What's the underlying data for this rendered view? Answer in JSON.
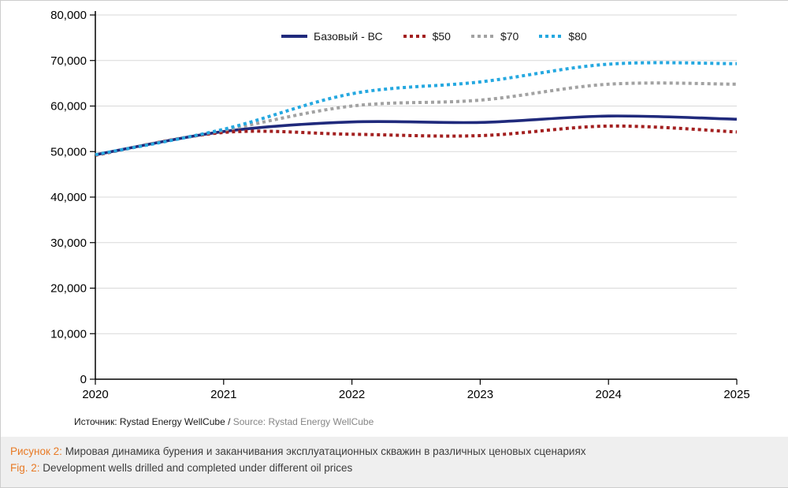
{
  "chart_data": {
    "type": "line",
    "x": [
      2020,
      2021,
      2022,
      2023,
      2024,
      2025
    ],
    "x_tick_labels": [
      "2020",
      "2021",
      "2022",
      "2023",
      "2024",
      "2025"
    ],
    "y_tick_labels": [
      "0",
      "10,000",
      "20,000",
      "30,000",
      "40,000",
      "50,000",
      "60,000",
      "70,000",
      "80,000"
    ],
    "ylim": [
      0,
      80000
    ],
    "ytick_step": 10000,
    "grid": true,
    "legend_position": "top-center",
    "series": [
      {
        "name": "Базовый - ВС",
        "style": "solid",
        "color": "#202a7c",
        "values": [
          49300,
          54400,
          56500,
          56400,
          57800,
          57100
        ]
      },
      {
        "name": "$50",
        "style": "dotted",
        "color": "#a32020",
        "values": [
          49200,
          54200,
          53800,
          53500,
          55600,
          54300
        ]
      },
      {
        "name": "$70",
        "style": "dotted",
        "color": "#a2a2a2",
        "values": [
          49300,
          54700,
          60000,
          61300,
          64800,
          64800
        ]
      },
      {
        "name": "$80",
        "style": "dotted",
        "color": "#25a8e0",
        "values": [
          49300,
          54900,
          62700,
          65300,
          69200,
          69300
        ]
      }
    ]
  },
  "source_line": {
    "primary": "Источник: Rystad Energy WellCube / ",
    "secondary": "Source: Rystad Energy WellCube"
  },
  "caption": {
    "accent_color": "#e87a25",
    "line1_label": "Рисунок 2:",
    "line1_text": " Мировая динамика бурения и заканчивания эксплуатационных скважин в различных ценовых сценариях",
    "line2_label": "Fig. 2:",
    "line2_text": " Development wells drilled and completed under different oil prices"
  }
}
